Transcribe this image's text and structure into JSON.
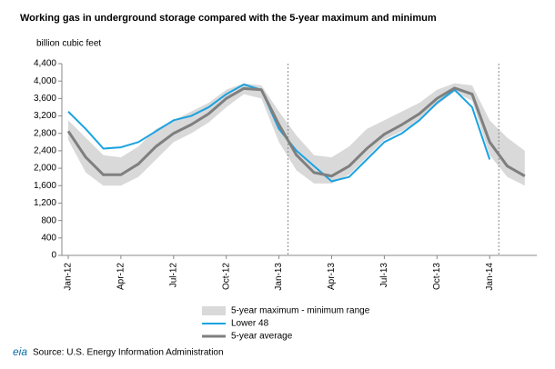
{
  "chart_data": {
    "type": "line",
    "title": "Working gas in underground storage compared with the 5-year maximum and minimum",
    "y_axis_label": "billion cubic feet",
    "source": "Source:  U.S. Energy Information Administration",
    "logo": "eia",
    "categories": [
      "Jan-12",
      null,
      null,
      "Apr-12",
      null,
      null,
      "Jul-12",
      null,
      null,
      "Oct-12",
      null,
      null,
      "Jan-13",
      null,
      null,
      "Apr-13",
      null,
      null,
      "Jul-13",
      null,
      null,
      "Oct-13",
      null,
      null,
      "Jan-14",
      null,
      null
    ],
    "ylim": [
      0,
      4400
    ],
    "yticks": [
      0,
      400,
      800,
      {
        "value": 1200,
        "label": "1,200"
      },
      {
        "value": 1600,
        "label": "1,600"
      },
      {
        "value": 2000,
        "label": "2,000"
      },
      {
        "value": 2400,
        "label": "2,400"
      },
      {
        "value": 2800,
        "label": "2,800"
      },
      {
        "value": 3200,
        "label": "3,200"
      },
      {
        "value": 3600,
        "label": "3,600"
      },
      {
        "value": 4000,
        "label": "4,000"
      },
      {
        "value": 4400,
        "label": "4,400"
      }
    ],
    "grid": false,
    "range": {
      "name": "5-year maximum - minimum range",
      "color": "#d9d9d9",
      "upper": [
        3100,
        2700,
        2300,
        2250,
        2500,
        2900,
        3100,
        3300,
        3500,
        3800,
        3950,
        3900,
        3300,
        2750,
        2300,
        2250,
        2500,
        2900,
        3100,
        3300,
        3500,
        3800,
        3950,
        3900,
        3100,
        2700,
        2400
      ],
      "lower": [
        2650,
        1900,
        1600,
        1600,
        1800,
        2200,
        2600,
        2800,
        3050,
        3400,
        3700,
        3600,
        2600,
        1950,
        1650,
        1650,
        1850,
        2250,
        2650,
        2850,
        3100,
        3450,
        3750,
        3550,
        2300,
        1800,
        1600
      ]
    },
    "series": [
      {
        "name": "Lower 48",
        "color": "#1aa3e0",
        "values": [
          3300,
          2900,
          2450,
          2480,
          2600,
          2850,
          3100,
          3200,
          3400,
          3700,
          3920,
          3800,
          2900,
          2400,
          2050,
          1700,
          1800,
          2200,
          2600,
          2800,
          3100,
          3500,
          3800,
          3400,
          2200,
          null,
          null
        ]
      },
      {
        "name": "5-year average",
        "color": "#7f7f7f",
        "values": [
          2850,
          2250,
          1850,
          1850,
          2100,
          2500,
          2800,
          3000,
          3250,
          3600,
          3830,
          3800,
          3000,
          2300,
          1900,
          1820,
          2050,
          2450,
          2780,
          3000,
          3250,
          3600,
          3840,
          3700,
          2600,
          2050,
          1820
        ]
      }
    ]
  }
}
